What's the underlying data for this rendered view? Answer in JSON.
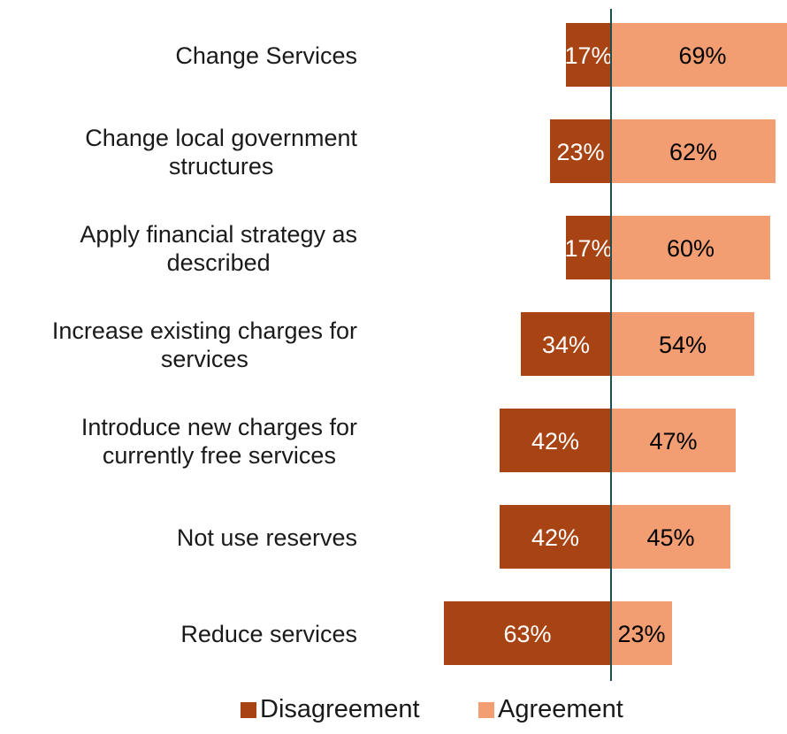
{
  "chart_data": {
    "type": "bar",
    "orientation": "horizontal-diverging",
    "categories": [
      "Change Services",
      "Change local government structures",
      "Apply financial strategy as described",
      "Increase existing charges for services",
      "Introduce new charges for currently free services",
      "Not use reserves",
      "Reduce services"
    ],
    "category_lines": [
      [
        "Change Services"
      ],
      [
        "Change local government",
        "structures"
      ],
      [
        "Apply financial strategy as",
        "described"
      ],
      [
        "Increase existing charges for",
        "services"
      ],
      [
        "Introduce new charges for",
        "currently free services"
      ],
      [
        "Not use reserves"
      ],
      [
        "Reduce services"
      ]
    ],
    "series": [
      {
        "name": "Disagreement",
        "color": "#A84313",
        "text_color": "#ffffff",
        "values": [
          17,
          23,
          17,
          34,
          42,
          42,
          63
        ],
        "labels": [
          "17%",
          "23%",
          "17%",
          "34%",
          "42%",
          "42%",
          "63%"
        ]
      },
      {
        "name": "Agreement",
        "color": "#F29E72",
        "text_color": "#000000",
        "values": [
          69,
          62,
          60,
          54,
          47,
          45,
          23
        ],
        "labels": [
          "69%",
          "62%",
          "60%",
          "54%",
          "47%",
          "45%",
          "23%"
        ]
      }
    ],
    "axis_line_color": "#1F4E50",
    "legend_placement": "bottom-center",
    "title": "",
    "xlabel": "",
    "ylabel": ""
  }
}
